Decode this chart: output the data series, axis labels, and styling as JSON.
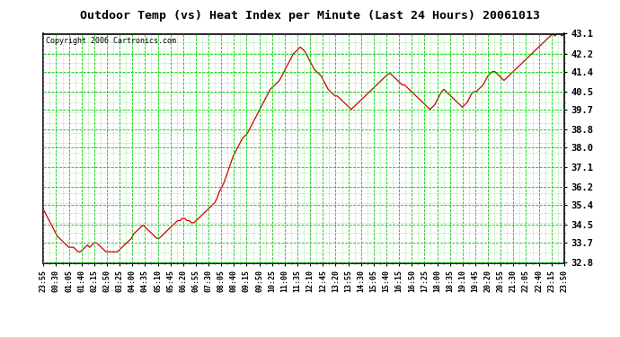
{
  "title": "Outdoor Temp (vs) Heat Index per Minute (Last 24 Hours) 20061013",
  "copyright": "Copyright 2006 Cartronics.com",
  "background_color": "#ffffff",
  "plot_bg_color": "#ffffff",
  "line_color": "#cc0000",
  "grid_color": "#00cc00",
  "yticks": [
    32.8,
    33.7,
    34.5,
    35.4,
    36.2,
    37.1,
    38.0,
    38.8,
    39.7,
    40.5,
    41.4,
    42.2,
    43.1
  ],
  "ylim": [
    32.8,
    43.1
  ],
  "xtick_labels": [
    "23:55",
    "00:30",
    "01:05",
    "01:40",
    "02:15",
    "02:50",
    "03:25",
    "04:00",
    "04:35",
    "05:10",
    "05:45",
    "06:20",
    "06:55",
    "07:30",
    "08:05",
    "08:40",
    "09:15",
    "09:50",
    "10:25",
    "11:00",
    "11:35",
    "12:10",
    "12:45",
    "13:20",
    "13:55",
    "14:30",
    "15:05",
    "15:40",
    "16:15",
    "16:50",
    "17:25",
    "18:00",
    "18:35",
    "19:10",
    "19:45",
    "20:20",
    "20:55",
    "21:30",
    "22:05",
    "22:40",
    "23:15",
    "23:50"
  ],
  "y_values": [
    35.2,
    35.0,
    34.8,
    34.6,
    34.4,
    34.2,
    34.0,
    33.9,
    33.8,
    33.7,
    33.6,
    33.5,
    33.5,
    33.5,
    33.4,
    33.3,
    33.3,
    33.4,
    33.5,
    33.6,
    33.5,
    33.6,
    33.7,
    33.7,
    33.6,
    33.5,
    33.4,
    33.3,
    33.3,
    33.3,
    33.3,
    33.3,
    33.3,
    33.4,
    33.5,
    33.6,
    33.7,
    33.8,
    33.9,
    34.1,
    34.2,
    34.3,
    34.4,
    34.5,
    34.4,
    34.3,
    34.2,
    34.1,
    34.0,
    33.9,
    33.9,
    34.0,
    34.1,
    34.2,
    34.3,
    34.4,
    34.5,
    34.6,
    34.7,
    34.7,
    34.8,
    34.8,
    34.7,
    34.7,
    34.6,
    34.6,
    34.7,
    34.8,
    34.9,
    35.0,
    35.1,
    35.2,
    35.3,
    35.4,
    35.5,
    35.7,
    36.0,
    36.2,
    36.4,
    36.7,
    37.0,
    37.3,
    37.6,
    37.8,
    38.0,
    38.2,
    38.4,
    38.5,
    38.6,
    38.8,
    39.0,
    39.2,
    39.4,
    39.6,
    39.8,
    40.0,
    40.2,
    40.4,
    40.6,
    40.7,
    40.8,
    40.9,
    41.0,
    41.2,
    41.4,
    41.6,
    41.8,
    42.0,
    42.2,
    42.3,
    42.4,
    42.5,
    42.4,
    42.3,
    42.1,
    41.9,
    41.7,
    41.5,
    41.4,
    41.3,
    41.2,
    41.0,
    40.8,
    40.6,
    40.5,
    40.4,
    40.3,
    40.3,
    40.2,
    40.1,
    40.0,
    39.9,
    39.8,
    39.7,
    39.8,
    39.9,
    40.0,
    40.1,
    40.2,
    40.3,
    40.4,
    40.5,
    40.6,
    40.7,
    40.8,
    40.9,
    41.0,
    41.1,
    41.2,
    41.3,
    41.3,
    41.2,
    41.1,
    41.0,
    40.9,
    40.8,
    40.8,
    40.7,
    40.6,
    40.5,
    40.4,
    40.3,
    40.2,
    40.1,
    40.0,
    39.9,
    39.8,
    39.7,
    39.8,
    39.9,
    40.1,
    40.3,
    40.5,
    40.6,
    40.5,
    40.4,
    40.3,
    40.2,
    40.1,
    40.0,
    39.9,
    39.8,
    39.9,
    40.0,
    40.2,
    40.4,
    40.5,
    40.5,
    40.6,
    40.7,
    40.8,
    41.0,
    41.2,
    41.3,
    41.4,
    41.4,
    41.3,
    41.2,
    41.1,
    41.0,
    41.1,
    41.2,
    41.3,
    41.4,
    41.5,
    41.6,
    41.7,
    41.8,
    41.9,
    42.0,
    42.1,
    42.2,
    42.3,
    42.4,
    42.5,
    42.6,
    42.7,
    42.8,
    42.9,
    43.0,
    43.1,
    43.0,
    43.1,
    43.1,
    43.0,
    43.1
  ]
}
